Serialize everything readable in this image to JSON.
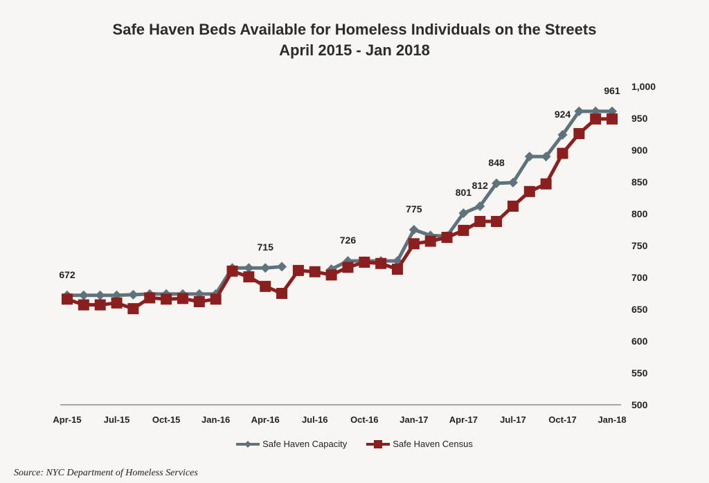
{
  "chart_data": {
    "type": "line",
    "title": "Safe Haven Beds Available for Homeless Individuals on the Streets",
    "subtitle": "April 2015 - Jan 2018",
    "x_tick_labels": [
      "Apr-15",
      "Jul-15",
      "Oct-15",
      "Jan-16",
      "Apr-16",
      "Jul-16",
      "Oct-16",
      "Jan-17",
      "Apr-17",
      "Jul-17",
      "Oct-17",
      "Jan-18"
    ],
    "months": 34,
    "ylim": [
      500,
      1000
    ],
    "y_ticks": [
      "500",
      "550",
      "600",
      "650",
      "700",
      "750",
      "800",
      "850",
      "900",
      "950",
      "1,000"
    ],
    "y_axis_position": "right",
    "series": [
      {
        "name": "Safe Haven Capacity",
        "color": "#5f737d",
        "marker": "diamond",
        "values": [
          672,
          672,
          672,
          672,
          673,
          674,
          674,
          674,
          674,
          674,
          715,
          715,
          715,
          717,
          null,
          null,
          713,
          726,
          726,
          726,
          726,
          775,
          766,
          765,
          801,
          812,
          848,
          849,
          890,
          890,
          924,
          961,
          961,
          961
        ],
        "labels": [
          {
            "index": 0,
            "text": "672"
          },
          {
            "index": 12,
            "text": "715"
          },
          {
            "index": 17,
            "text": "726"
          },
          {
            "index": 21,
            "text": "775"
          },
          {
            "index": 24,
            "text": "801"
          },
          {
            "index": 25,
            "text": "812"
          },
          {
            "index": 26,
            "text": "848"
          },
          {
            "index": 30,
            "text": "924"
          },
          {
            "index": 33,
            "text": "961"
          }
        ]
      },
      {
        "name": "Safe Haven Census",
        "color": "#8b1e1e",
        "marker": "square",
        "values": [
          666,
          657,
          657,
          660,
          651,
          668,
          666,
          667,
          662,
          666,
          710,
          701,
          686,
          675,
          711,
          709,
          704,
          716,
          724,
          722,
          713,
          753,
          757,
          763,
          774,
          788,
          788,
          812,
          835,
          847,
          895,
          926,
          949,
          949
        ]
      }
    ],
    "legend_position": "bottom"
  },
  "source": "Source:  NYC Department of Homeless Services"
}
